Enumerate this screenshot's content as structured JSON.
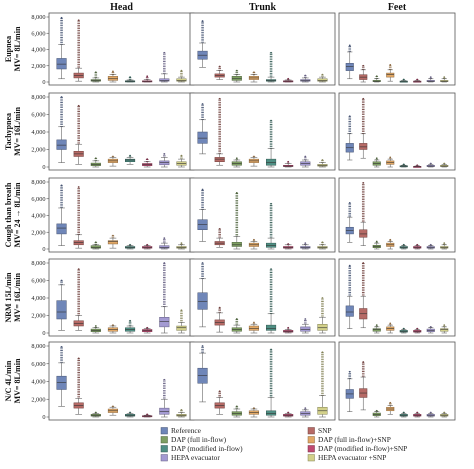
{
  "chart_data": {
    "type": "boxplot",
    "columns": [
      "Head",
      "Trunk",
      "Feet"
    ],
    "rows": [
      {
        "line1": "Eupnea",
        "line2": "MV= 8L/min"
      },
      {
        "line1": "Tachypnea",
        "line2": "MV= 16L/min"
      },
      {
        "line1": "Cough than breath",
        "line2": "MV= 24 → 8L/min"
      },
      {
        "line1": "NRM 15L/min",
        "line2": "MV= 16L/min"
      },
      {
        "line1": "N/C 4L/min",
        "line2": "MV= 8L/min"
      }
    ],
    "ylim": [
      0,
      8000
    ],
    "y_ticks": [
      "0",
      "2,000",
      "4,000",
      "6,000",
      "8,000"
    ],
    "series": [
      {
        "name": "Reference",
        "color": "#6f86b8"
      },
      {
        "name": "SNP",
        "color": "#b66a66"
      },
      {
        "name": "DAP (full in-flow)",
        "color": "#7e9f62"
      },
      {
        "name": "DAP (full in-flow)+SNP",
        "color": "#e2a866"
      },
      {
        "name": "DAP (modified in-flow)",
        "color": "#4f8f84"
      },
      {
        "name": "DAP (modified in-flow)+SNP",
        "color": "#c04a72"
      },
      {
        "name": "HEPA evacuator",
        "color": "#a39ad2"
      },
      {
        "name": "HEPA evacuator +SNP",
        "color": "#d2d08a"
      }
    ],
    "boxes": [
      [
        [
          [
            400,
            1600,
            2200,
            2900,
            4600,
            7900
          ],
          [
            100,
            500,
            800,
            1100,
            1700,
            7600
          ],
          [
            0,
            100,
            200,
            300,
            500,
            1200
          ],
          [
            0,
            200,
            400,
            700,
            900,
            1300
          ],
          [
            0,
            50,
            100,
            150,
            250,
            600
          ],
          [
            0,
            30,
            80,
            150,
            300,
            700
          ],
          [
            0,
            100,
            200,
            400,
            1000,
            3600
          ],
          [
            0,
            100,
            200,
            400,
            600,
            1400
          ]
        ],
        [
          [
            1800,
            2800,
            3300,
            3800,
            4800,
            7500
          ],
          [
            300,
            600,
            800,
            1000,
            1400,
            1900
          ],
          [
            0,
            200,
            400,
            700,
            900,
            1400
          ],
          [
            0,
            300,
            500,
            700,
            900,
            1200
          ],
          [
            0,
            100,
            200,
            300,
            600,
            3600
          ],
          [
            0,
            50,
            100,
            150,
            250,
            400
          ],
          [
            0,
            100,
            200,
            300,
            500,
            800
          ],
          [
            0,
            100,
            200,
            400,
            600,
            900
          ]
        ],
        [
          [
            400,
            1400,
            1900,
            2300,
            3700,
            4500
          ],
          [
            0,
            300,
            600,
            900,
            1500,
            2000
          ],
          [
            0,
            50,
            100,
            200,
            400,
            700
          ],
          [
            100,
            600,
            900,
            1100,
            1500,
            2100
          ],
          [
            0,
            30,
            80,
            120,
            200,
            300
          ],
          [
            0,
            30,
            80,
            120,
            200,
            300
          ],
          [
            0,
            50,
            100,
            200,
            400,
            600
          ],
          [
            0,
            50,
            100,
            200,
            400,
            600
          ]
        ]
      ],
      [
        [
          [
            500,
            2000,
            2500,
            3100,
            4600,
            8000
          ],
          [
            300,
            1200,
            1500,
            1800,
            2600,
            7000
          ],
          [
            0,
            150,
            300,
            450,
            700,
            1000
          ],
          [
            100,
            500,
            700,
            900,
            1100,
            1200
          ],
          [
            300,
            600,
            800,
            900,
            1100,
            1300
          ],
          [
            0,
            150,
            300,
            400,
            600,
            900
          ],
          [
            0,
            250,
            500,
            700,
            1100,
            1500
          ],
          [
            0,
            200,
            400,
            600,
            900,
            1300
          ]
        ],
        [
          [
            1500,
            2700,
            3300,
            4000,
            5400,
            7200
          ],
          [
            200,
            600,
            900,
            1100,
            1500,
            7800
          ],
          [
            0,
            200,
            400,
            600,
            800,
            1000
          ],
          [
            100,
            500,
            700,
            900,
            1100,
            1200
          ],
          [
            0,
            200,
            500,
            900,
            2100,
            5300
          ],
          [
            0,
            50,
            100,
            200,
            400,
            600
          ],
          [
            0,
            200,
            400,
            600,
            800,
            1200
          ],
          [
            0,
            100,
            200,
            300,
            500,
            800
          ]
        ],
        [
          [
            800,
            1700,
            2200,
            2700,
            3800,
            5800
          ],
          [
            1000,
            2000,
            2300,
            2700,
            3800,
            7800
          ],
          [
            0,
            200,
            400,
            600,
            800,
            1000
          ],
          [
            0,
            300,
            500,
            700,
            900,
            1100
          ],
          [
            0,
            50,
            100,
            150,
            200,
            300
          ],
          [
            0,
            20,
            50,
            80,
            120,
            200
          ],
          [
            0,
            50,
            100,
            200,
            300,
            400
          ],
          [
            0,
            50,
            100,
            200,
            300,
            400
          ]
        ]
      ],
      [
        [
          [
            400,
            1800,
            2500,
            3000,
            4900,
            7600
          ],
          [
            100,
            500,
            800,
            1000,
            1700,
            7400
          ],
          [
            0,
            100,
            200,
            400,
            500,
            800
          ],
          [
            100,
            600,
            900,
            1000,
            1300,
            1600
          ],
          [
            0,
            100,
            200,
            300,
            400,
            500
          ],
          [
            0,
            100,
            200,
            300,
            400,
            500
          ],
          [
            0,
            100,
            200,
            400,
            700,
            1300
          ],
          [
            0,
            100,
            200,
            300,
            500,
            700
          ]
        ],
        [
          [
            900,
            2300,
            2900,
            3500,
            4700,
            7100
          ],
          [
            200,
            500,
            700,
            900,
            1300,
            2400
          ],
          [
            0,
            300,
            500,
            800,
            1500,
            6700
          ],
          [
            0,
            300,
            500,
            700,
            900,
            1100
          ],
          [
            0,
            200,
            400,
            700,
            1300,
            5400
          ],
          [
            0,
            100,
            200,
            300,
            500,
            600
          ],
          [
            0,
            100,
            200,
            300,
            500,
            700
          ],
          [
            0,
            100,
            200,
            300,
            500,
            800
          ]
        ],
        [
          [
            800,
            1800,
            2200,
            2600,
            3800,
            5500
          ],
          [
            400,
            1400,
            1800,
            2300,
            3200,
            7900
          ],
          [
            0,
            150,
            300,
            450,
            700,
            900
          ],
          [
            0,
            300,
            500,
            700,
            900,
            1100
          ],
          [
            0,
            100,
            200,
            300,
            400,
            500
          ],
          [
            0,
            100,
            200,
            300,
            400,
            500
          ],
          [
            0,
            100,
            200,
            300,
            400,
            500
          ],
          [
            0,
            100,
            200,
            300,
            500,
            700
          ]
        ]
      ],
      [
        [
          [
            300,
            1600,
            2400,
            3700,
            5500,
            6000
          ],
          [
            300,
            800,
            1100,
            1400,
            2000,
            7300
          ],
          [
            0,
            150,
            300,
            450,
            600,
            800
          ],
          [
            0,
            200,
            400,
            600,
            800,
            900
          ],
          [
            0,
            200,
            400,
            600,
            800,
            1400
          ],
          [
            0,
            150,
            300,
            400,
            500,
            600
          ],
          [
            0,
            700,
            1300,
            1800,
            3000,
            8000
          ],
          [
            0,
            300,
            600,
            800,
            1200,
            2600
          ]
        ],
        [
          [
            700,
            2700,
            3600,
            4600,
            6200,
            8000
          ],
          [
            100,
            900,
            1200,
            1500,
            2300,
            2900
          ],
          [
            0,
            200,
            400,
            600,
            900,
            1600
          ],
          [
            0,
            300,
            500,
            800,
            1000,
            1200
          ],
          [
            0,
            300,
            500,
            900,
            2200,
            7300
          ],
          [
            0,
            100,
            200,
            300,
            400,
            600
          ],
          [
            0,
            200,
            400,
            700,
            1000,
            1600
          ],
          [
            0,
            300,
            600,
            1000,
            1800,
            4000
          ]
        ],
        [
          [
            500,
            1900,
            2400,
            3100,
            4200,
            7700
          ],
          [
            600,
            1600,
            2200,
            2800,
            4200,
            8000
          ],
          [
            0,
            200,
            400,
            500,
            700,
            900
          ],
          [
            0,
            300,
            500,
            700,
            900,
            1100
          ],
          [
            0,
            100,
            200,
            300,
            400,
            500
          ],
          [
            0,
            100,
            200,
            300,
            400,
            500
          ],
          [
            0,
            150,
            300,
            450,
            600,
            700
          ],
          [
            0,
            200,
            400,
            500,
            700,
            900
          ]
        ]
      ],
      [
        [
          [
            1200,
            3100,
            3900,
            4600,
            6100,
            7900
          ],
          [
            300,
            1000,
            1300,
            1600,
            2100,
            6600
          ],
          [
            0,
            100,
            200,
            300,
            400,
            500
          ],
          [
            200,
            500,
            700,
            900,
            1100,
            1200
          ],
          [
            0,
            100,
            200,
            300,
            400,
            500
          ],
          [
            0,
            50,
            100,
            150,
            200,
            300
          ],
          [
            0,
            300,
            600,
            1000,
            2000,
            4200
          ],
          [
            0,
            100,
            200,
            300,
            500,
            800
          ]
        ],
        [
          [
            1700,
            3800,
            4700,
            5500,
            7200,
            8000
          ],
          [
            300,
            1000,
            1300,
            1600,
            2200,
            2900
          ],
          [
            0,
            200,
            400,
            600,
            900,
            1200
          ],
          [
            0,
            300,
            500,
            700,
            900,
            1000
          ],
          [
            0,
            200,
            400,
            700,
            2200,
            7600
          ],
          [
            0,
            100,
            200,
            300,
            400,
            500
          ],
          [
            0,
            200,
            400,
            600,
            800,
            1000
          ],
          [
            0,
            300,
            700,
            1100,
            2400,
            7300
          ]
        ],
        [
          [
            600,
            2100,
            2600,
            3100,
            4300,
            5100
          ],
          [
            800,
            2200,
            2700,
            3200,
            4500,
            6200
          ],
          [
            0,
            150,
            300,
            450,
            600,
            700
          ],
          [
            300,
            700,
            900,
            1100,
            1300,
            1600
          ],
          [
            0,
            100,
            200,
            300,
            400,
            500
          ],
          [
            0,
            100,
            200,
            300,
            400,
            500
          ],
          [
            0,
            100,
            200,
            300,
            400,
            500
          ],
          [
            0,
            100,
            200,
            300,
            400,
            500
          ]
        ]
      ]
    ]
  }
}
